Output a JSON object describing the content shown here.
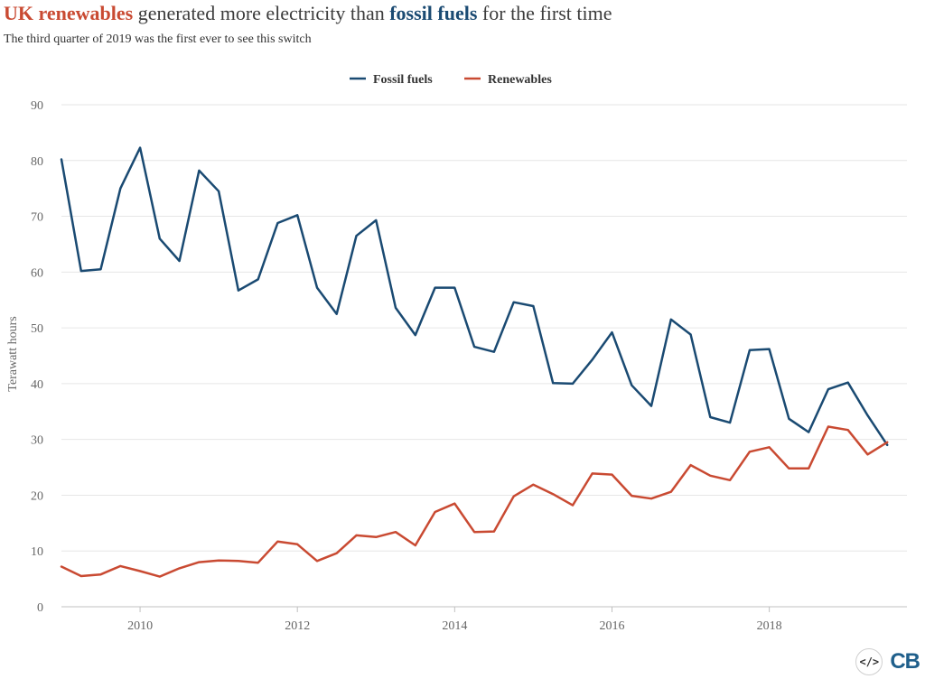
{
  "header": {
    "title_part1": "UK renewables",
    "title_part2": " generated more electricity than ",
    "title_part3": "fossil fuels",
    "title_part4": " for the first time",
    "subtitle": "The third quarter of 2019 was the first ever to see this switch"
  },
  "colors": {
    "fossil": "#1a4a72",
    "renewables": "#c94a32",
    "grid": "#e6e6e6",
    "axis": "#c0c0c0"
  },
  "chart_data": {
    "type": "line",
    "title": "UK renewables generated more electricity than fossil fuels for the first time",
    "subtitle": "The third quarter of 2019 was the first ever to see this switch",
    "xlabel": "",
    "ylabel": "Terawatt hours",
    "xlim": [
      2009.0,
      2019.75
    ],
    "ylim": [
      0,
      90
    ],
    "yticks": [
      0,
      10,
      20,
      30,
      40,
      50,
      60,
      70,
      80,
      90
    ],
    "xticks": [
      2010,
      2012,
      2014,
      2016,
      2018
    ],
    "grid": true,
    "legend_position": "top-center",
    "x": [
      2009.0,
      2009.25,
      2009.5,
      2009.75,
      2010.0,
      2010.25,
      2010.5,
      2010.75,
      2011.0,
      2011.25,
      2011.5,
      2011.75,
      2012.0,
      2012.25,
      2012.5,
      2012.75,
      2013.0,
      2013.25,
      2013.5,
      2013.75,
      2014.0,
      2014.25,
      2014.5,
      2014.75,
      2015.0,
      2015.25,
      2015.5,
      2015.75,
      2016.0,
      2016.25,
      2016.5,
      2016.75,
      2017.0,
      2017.25,
      2017.5,
      2017.75,
      2018.0,
      2018.25,
      2018.5,
      2018.75,
      2019.0,
      2019.25,
      2019.5
    ],
    "series": [
      {
        "name": "Fossil fuels",
        "color": "#1a4a72",
        "values": [
          80.2,
          60.2,
          60.5,
          75.0,
          82.3,
          66.0,
          62.0,
          78.2,
          74.5,
          56.7,
          58.7,
          68.8,
          70.2,
          57.2,
          52.5,
          66.5,
          69.3,
          53.6,
          48.7,
          57.2,
          57.2,
          46.6,
          45.7,
          54.6,
          53.9,
          40.1,
          40.0,
          44.3,
          49.2,
          39.7,
          36.0,
          51.5,
          48.8,
          34.0,
          33.0,
          46.0,
          46.2,
          33.7,
          31.3,
          39.0,
          40.2,
          34.3,
          29.0
        ]
      },
      {
        "name": "Renewables",
        "color": "#c94a32",
        "values": [
          7.2,
          5.5,
          5.8,
          7.3,
          6.4,
          5.4,
          6.9,
          8.0,
          8.3,
          8.2,
          7.9,
          11.7,
          11.2,
          8.2,
          9.6,
          12.8,
          12.5,
          13.4,
          11.0,
          17.0,
          18.5,
          13.4,
          13.5,
          19.8,
          21.9,
          20.2,
          18.2,
          23.9,
          23.7,
          19.9,
          19.4,
          20.6,
          25.4,
          23.5,
          22.7,
          27.8,
          28.6,
          24.8,
          24.8,
          32.3,
          31.7,
          27.3,
          29.5
        ]
      }
    ]
  }
}
